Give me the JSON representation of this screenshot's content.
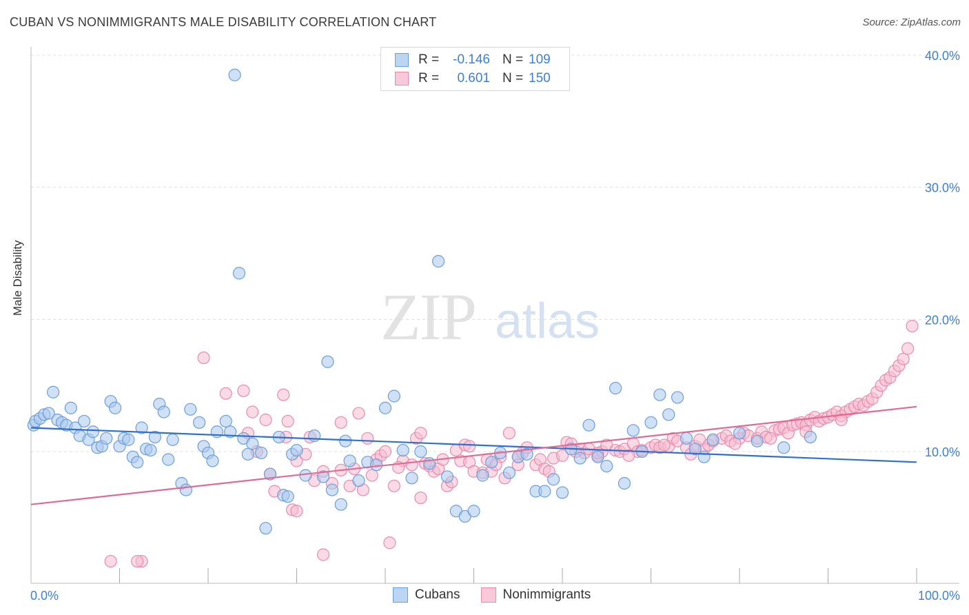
{
  "title": "CUBAN VS NONIMMIGRANTS MALE DISABILITY CORRELATION CHART",
  "source": "Source: ZipAtlas.com",
  "watermark": {
    "zip": "ZIP",
    "atlas": "atlas"
  },
  "legend_top": {
    "rows": [
      {
        "r_label": "R =",
        "r_value": "-0.146",
        "n_label": "N =",
        "n_value": "109"
      },
      {
        "r_label": "R =",
        "r_value": "0.601",
        "n_label": "N =",
        "n_value": "150"
      }
    ]
  },
  "legend_bottom": {
    "cubans": "Cubans",
    "nonimmigrants": "Nonimmigrants"
  },
  "colors": {
    "cubans_fill": "#a9c8ee",
    "cubans_stroke": "#6a9ddb",
    "cubans_line": "#2f6fce",
    "nonimm_fill": "#f6bcd0",
    "nonimm_stroke": "#e88aab",
    "nonimm_line": "#e06a94",
    "tick_label": "#3d7fd0",
    "grid": "#dddddd"
  },
  "chart_data": {
    "type": "scatter",
    "title": "CUBAN VS NONIMMIGRANTS MALE DISABILITY CORRELATION CHART",
    "xlabel": "",
    "ylabel": "Male Disability",
    "xlim": [
      0,
      100
    ],
    "ylim": [
      0,
      40
    ],
    "x_tick_labels": [
      "0.0%",
      "100.0%"
    ],
    "y_ticks": [
      10,
      20,
      30,
      40
    ],
    "y_tick_labels": [
      "10.0%",
      "20.0%",
      "30.0%",
      "40.0%"
    ],
    "grid": true,
    "series": [
      {
        "name": "Cubans",
        "r": -0.146,
        "n": 109,
        "trend": {
          "x": [
            0,
            100
          ],
          "y": [
            11.8,
            9.2
          ]
        },
        "x": [
          0.3,
          0.5,
          1.0,
          1.5,
          2.0,
          2.5,
          3.0,
          3.5,
          4.0,
          4.5,
          5.0,
          5.5,
          6.0,
          6.5,
          7.0,
          7.5,
          8.0,
          8.5,
          9.0,
          9.5,
          10.0,
          10.5,
          11.0,
          11.5,
          12.0,
          12.5,
          13.0,
          13.5,
          14.0,
          14.5,
          15.0,
          15.5,
          16.0,
          17.0,
          17.5,
          18.0,
          19.0,
          19.5,
          20.0,
          20.5,
          21.0,
          22.0,
          22.5,
          23.0,
          23.5,
          24.0,
          24.5,
          25.0,
          26.0,
          26.5,
          27.0,
          28.0,
          28.5,
          29.0,
          29.5,
          30.0,
          31.0,
          32.0,
          33.0,
          33.5,
          34.0,
          35.0,
          35.5,
          36.0,
          37.0,
          38.0,
          39.0,
          40.0,
          41.0,
          42.0,
          43.0,
          44.0,
          45.0,
          46.0,
          47.0,
          48.0,
          49.0,
          50.0,
          51.0,
          52.0,
          53.0,
          54.0,
          55.0,
          56.0,
          57.0,
          58.0,
          59.0,
          60.0,
          61.0,
          62.0,
          63.0,
          64.0,
          65.0,
          66.0,
          67.0,
          68.0,
          69.0,
          70.0,
          71.0,
          72.0,
          73.0,
          74.0,
          75.0,
          76.0,
          77.0,
          80.0,
          82.0,
          85.0,
          88.0
        ],
        "y": [
          12.0,
          12.3,
          12.5,
          12.8,
          12.9,
          14.5,
          12.4,
          12.2,
          12.0,
          13.3,
          11.8,
          11.2,
          12.3,
          10.9,
          11.5,
          10.3,
          10.4,
          11.0,
          13.8,
          13.3,
          10.4,
          11.0,
          10.9,
          9.6,
          9.2,
          11.8,
          10.2,
          10.1,
          11.1,
          13.6,
          13.0,
          9.4,
          10.9,
          7.6,
          7.1,
          13.2,
          12.2,
          10.4,
          9.9,
          9.3,
          11.5,
          12.3,
          11.5,
          38.5,
          23.5,
          11.0,
          9.8,
          10.6,
          9.9,
          4.2,
          8.3,
          11.1,
          6.7,
          6.6,
          9.8,
          10.1,
          8.2,
          11.2,
          8.1,
          16.8,
          7.1,
          6.0,
          10.8,
          9.3,
          7.8,
          9.2,
          9.0,
          13.3,
          14.2,
          10.1,
          8.0,
          10.0,
          9.1,
          24.4,
          8.1,
          5.5,
          5.1,
          5.5,
          8.2,
          9.2,
          9.9,
          8.4,
          9.6,
          9.8,
          7.0,
          7.0,
          7.9,
          6.9,
          10.2,
          9.5,
          12.0,
          9.6,
          8.9,
          14.8,
          7.6,
          11.6,
          10.0,
          12.2,
          14.3,
          12.8,
          14.1,
          11.0,
          10.2,
          9.6,
          10.9,
          11.4,
          10.8,
          10.3,
          11.1
        ]
      },
      {
        "name": "Nonimmigrants",
        "r": 0.601,
        "n": 150,
        "trend": {
          "x": [
            0,
            100
          ],
          "y": [
            6.0,
            13.4
          ]
        },
        "x": [
          9.0,
          12.5,
          19.5,
          22.0,
          24.0,
          25.0,
          25.5,
          26.5,
          27.0,
          27.5,
          28.5,
          29.0,
          29.5,
          30.0,
          31.0,
          32.0,
          33.0,
          34.0,
          35.0,
          36.0,
          37.0,
          37.5,
          38.0,
          39.0,
          39.5,
          40.0,
          40.5,
          41.0,
          42.0,
          43.0,
          43.5,
          44.0,
          44.5,
          45.0,
          45.5,
          46.0,
          47.0,
          47.5,
          48.0,
          48.5,
          49.0,
          49.5,
          50.0,
          51.0,
          51.5,
          52.0,
          53.0,
          53.5,
          54.0,
          55.0,
          55.5,
          56.0,
          57.0,
          57.5,
          58.0,
          59.0,
          60.0,
          60.5,
          61.0,
          62.0,
          62.5,
          63.0,
          64.0,
          64.5,
          65.0,
          66.0,
          66.5,
          67.0,
          68.0,
          68.5,
          69.0,
          70.0,
          70.5,
          71.0,
          72.0,
          72.5,
          73.0,
          74.0,
          74.5,
          75.0,
          76.0,
          76.5,
          77.0,
          78.0,
          78.5,
          79.0,
          80.0,
          80.5,
          81.0,
          82.0,
          82.5,
          83.0,
          84.0,
          84.5,
          85.0,
          85.5,
          86.0,
          86.5,
          87.0,
          87.5,
          88.0,
          88.5,
          89.0,
          89.5,
          90.0,
          90.5,
          91.0,
          91.5,
          92.0,
          92.5,
          93.0,
          93.5,
          94.0,
          94.5,
          95.0,
          95.5,
          96.0,
          96.5,
          97.0,
          97.5,
          98.0,
          98.5,
          99.0,
          99.5,
          12.0,
          24.5,
          28.8,
          30.0,
          31.5,
          33.0,
          35.0,
          36.5,
          38.5,
          41.5,
          44.0,
          46.5,
          49.5,
          52.5,
          55.0,
          58.5,
          61.5,
          64.0,
          67.5,
          71.5,
          75.5,
          79.5,
          83.5,
          87.5,
          91.5
        ],
        "y": [
          1.7,
          1.7,
          17.1,
          14.4,
          14.6,
          13.0,
          10.0,
          12.4,
          8.3,
          7.0,
          14.3,
          12.3,
          5.6,
          9.3,
          9.8,
          7.8,
          2.2,
          7.6,
          8.6,
          7.4,
          12.9,
          7.1,
          11.0,
          9.4,
          9.7,
          10.0,
          3.1,
          7.4,
          9.3,
          9.0,
          11.0,
          6.5,
          9.1,
          8.9,
          8.5,
          8.7,
          7.4,
          7.7,
          10.1,
          9.3,
          10.5,
          9.2,
          8.5,
          8.4,
          9.4,
          8.5,
          9.6,
          8.0,
          11.4,
          9.6,
          9.9,
          10.3,
          9.0,
          9.4,
          8.7,
          9.5,
          9.7,
          10.7,
          10.6,
          10.2,
          9.9,
          10.2,
          9.7,
          10.0,
          10.5,
          10.1,
          10.0,
          10.2,
          10.6,
          10.0,
          10.1,
          10.3,
          10.5,
          10.3,
          10.4,
          11.0,
          10.8,
          10.3,
          9.8,
          10.4,
          10.2,
          10.5,
          10.8,
          11.0,
          11.2,
          10.8,
          11.0,
          11.4,
          11.2,
          11.0,
          11.5,
          11.1,
          11.6,
          11.7,
          11.8,
          11.4,
          12.0,
          12.1,
          12.2,
          12.0,
          12.4,
          12.6,
          12.3,
          12.5,
          12.6,
          12.8,
          13.0,
          12.7,
          13.0,
          13.2,
          13.4,
          13.6,
          13.5,
          13.8,
          14.0,
          14.5,
          15.0,
          15.4,
          15.6,
          16.1,
          16.5,
          17.0,
          17.8,
          19.5,
          1.7,
          11.4,
          11.1,
          5.5,
          11.1,
          8.5,
          12.2,
          8.7,
          8.2,
          8.8,
          11.4,
          9.4,
          10.4,
          9.0,
          9.0,
          8.5,
          10.0,
          9.9,
          9.7,
          10.5,
          10.9,
          10.6,
          11.0,
          11.5,
          12.4
        ]
      }
    ]
  }
}
